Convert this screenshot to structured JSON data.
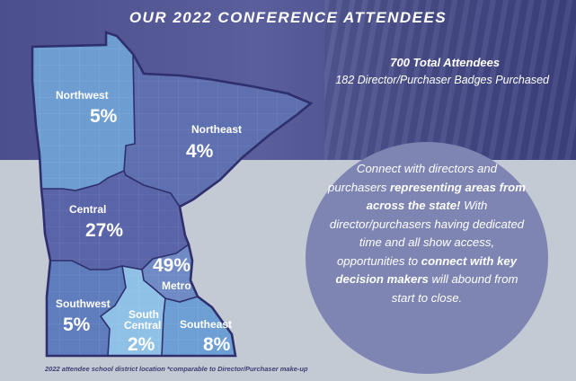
{
  "header": {
    "title": "OUR 2022 CONFERENCE ATTENDEES"
  },
  "stats": {
    "total": "700 Total Attendees",
    "badges": "182 Director/Purchaser Badges Purchased"
  },
  "callout": {
    "p1": "Connect with directors and purchasers ",
    "b1": "representing areas from across the state!",
    "p2": " With director/purchasers having dedicated time and all show access, opportunities to ",
    "b2": "connect with key decision makers",
    "p3": " will abound from start to close."
  },
  "regions": [
    {
      "name": "Northwest",
      "pct": "5%"
    },
    {
      "name": "Northeast",
      "pct": "4%"
    },
    {
      "name": "Central",
      "pct": "27%"
    },
    {
      "name": "Metro",
      "pct": "49%"
    },
    {
      "name": "Southwest",
      "pct": "5%"
    },
    {
      "name": "South Central",
      "name1": "South",
      "name2": "Central",
      "pct": "2%"
    },
    {
      "name": "Southeast",
      "pct": "8%"
    }
  ],
  "colors": {
    "northwest": "#6e9dd2",
    "northeast": "#5e70b0",
    "central": "#5a64a8",
    "metro": "#6f8ac4",
    "southwest": "#5f7dbd",
    "south_central": "#8fc1e6",
    "southeast": "#6e9fd4",
    "border": "#2e2f6c"
  },
  "footnote": "2022 attendee school district location *comparable to Director/Purchaser make-up"
}
